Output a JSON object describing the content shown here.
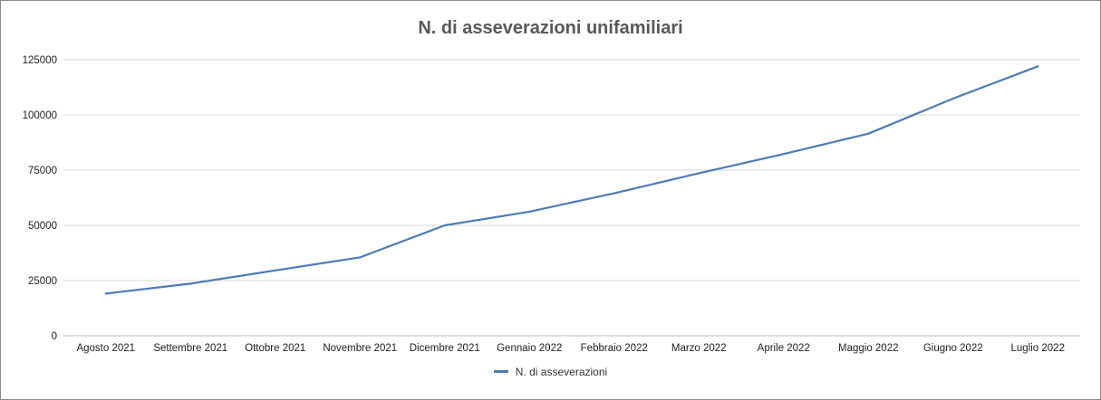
{
  "chart_data": {
    "type": "line",
    "title": "N. di asseverazioni unifamiliari",
    "xlabel": "",
    "ylabel": "",
    "categories": [
      "Agosto 2021",
      "Settembre 2021",
      "Ottobre 2021",
      "Novembre 2021",
      "Dicembre 2021",
      "Gennaio 2022",
      "Febbraio 2022",
      "Marzo 2022",
      "Aprile 2022",
      "Maggio 2022",
      "Giugno 2022",
      "Luglio 2022"
    ],
    "series": [
      {
        "name": "N. di asseverazioni",
        "color": "#4f7ab8",
        "values": [
          19100,
          23600,
          29600,
          35500,
          50000,
          56200,
          64500,
          73600,
          82300,
          91500,
          107400,
          122000
        ]
      }
    ],
    "ylim": [
      0,
      125000
    ],
    "yticks": [
      "0",
      "25000",
      "50000",
      "75000",
      "100000",
      "125000"
    ],
    "grid": true,
    "legend_position": "bottom"
  }
}
